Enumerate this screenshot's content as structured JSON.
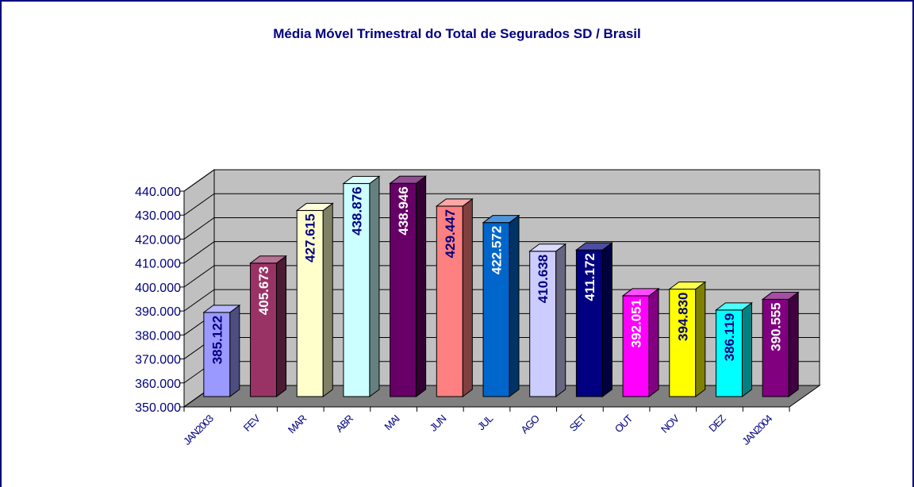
{
  "chart_data": {
    "type": "bar3d",
    "title": "Média Móvel Trimestral do Total de Segurados SD / Brasil",
    "categories": [
      "JAN2003",
      "FEV",
      "MAR",
      "ABR",
      "MAI",
      "JUN",
      "JUL",
      "AGO",
      "SET",
      "OUT",
      "NOV",
      "DEZ",
      "JAN2004"
    ],
    "values": [
      385122,
      405673,
      427615,
      438876,
      438946,
      429447,
      422572,
      410638,
      411172,
      392051,
      394830,
      386119,
      390555
    ],
    "value_labels": [
      "385.122",
      "405.673",
      "427.615",
      "438.876",
      "438.946",
      "429.447",
      "422.572",
      "410.638",
      "411.172",
      "392.051",
      "394.830",
      "386.119",
      "390.555"
    ],
    "colors": [
      "#9999ff",
      "#993366",
      "#ffffcc",
      "#ccffff",
      "#660066",
      "#ff8080",
      "#0066cc",
      "#ccccff",
      "#000080",
      "#ff00ff",
      "#ffff00",
      "#00ffff",
      "#800080"
    ],
    "ylim": [
      350000,
      440000
    ],
    "yticks": [
      {
        "value": 350000,
        "label": "350.000"
      },
      {
        "value": 360000,
        "label": "360.000"
      },
      {
        "value": 370000,
        "label": "370.000"
      },
      {
        "value": 380000,
        "label": "380.000"
      },
      {
        "value": 390000,
        "label": "390.000"
      },
      {
        "value": 400000,
        "label": "400.000"
      },
      {
        "value": 410000,
        "label": "410.000"
      },
      {
        "value": 420000,
        "label": "420.000"
      },
      {
        "value": 430000,
        "label": "430.000"
      },
      {
        "value": 440000,
        "label": "440.000"
      }
    ],
    "grid": true
  }
}
